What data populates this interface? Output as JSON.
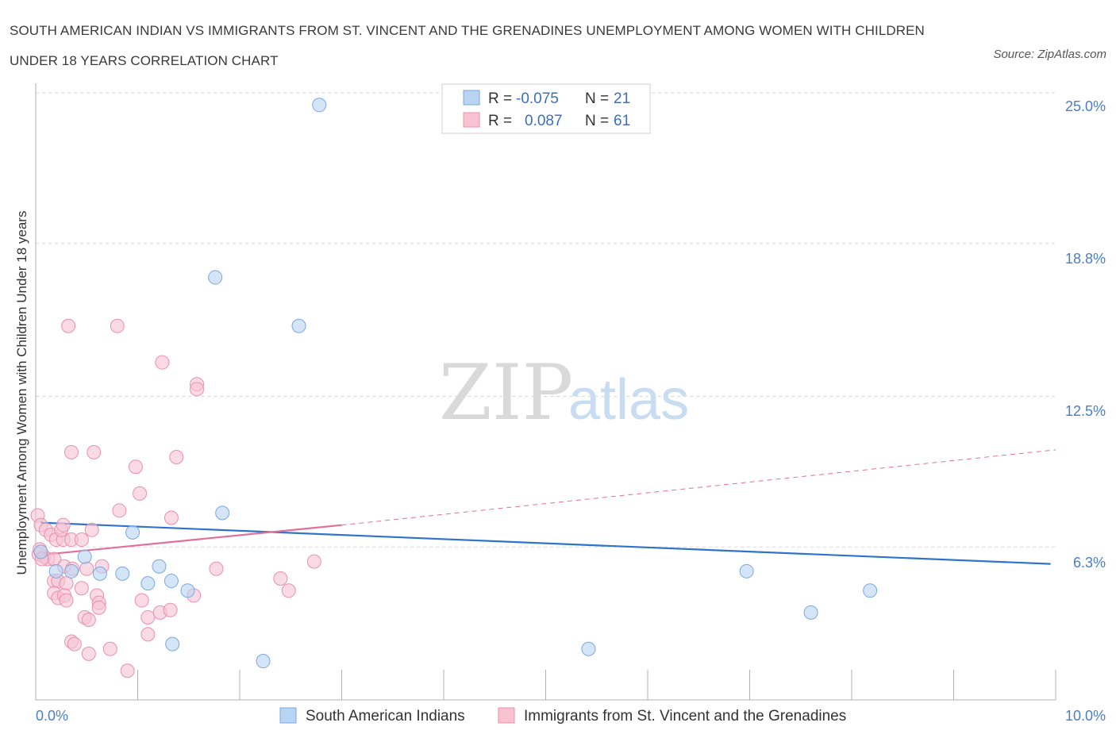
{
  "title": "SOUTH AMERICAN INDIAN VS IMMIGRANTS FROM ST. VINCENT AND THE GRENADINES UNEMPLOYMENT AMONG WOMEN WITH CHILDREN UNDER 18 YEARS CORRELATION CHART",
  "source": "Source: ZipAtlas.com",
  "watermark": {
    "zip": "ZIP",
    "atlas": "atlas"
  },
  "colors": {
    "blue_fill": "#b9d3f3",
    "blue_stroke": "#7aa7e0",
    "blue_line": "#2f74c8",
    "pink_fill": "#f7c3d3",
    "pink_stroke": "#e98fae",
    "pink_line": "#e0709a",
    "grid": "#d8d8d8",
    "axis_label": "#4a7fc8"
  },
  "legend_top": {
    "rows": [
      {
        "r_label": "R =",
        "r_value": "-0.075",
        "n_label": "N =",
        "n_value": "21",
        "series": "blue"
      },
      {
        "r_label": "R =",
        "r_value": "0.087",
        "n_label": "N =",
        "n_value": "61",
        "series": "pink"
      }
    ]
  },
  "chart_data": {
    "type": "scatter",
    "title": "SOUTH AMERICAN INDIAN VS IMMIGRANTS FROM ST. VINCENT AND THE GRENADINES UNEMPLOYMENT AMONG WOMEN WITH CHILDREN UNDER 18 YEARS CORRELATION CHART",
    "xlabel": "",
    "ylabel": "Unemployment Among Women with Children Under 18 years",
    "xlim": [
      0,
      10
    ],
    "ylim": [
      0,
      25.0
    ],
    "x_tick_labels": [
      "0.0%",
      "10.0%"
    ],
    "y_ticks": [
      6.3,
      12.5,
      18.8,
      25.0
    ],
    "y_tick_labels": [
      "6.3%",
      "12.5%",
      "18.8%",
      "25.0%"
    ],
    "grid": true,
    "legend": [
      "South American Indians",
      "Immigrants from St. Vincent and the Grenadines"
    ],
    "series": [
      {
        "name": "South American Indians",
        "color": "blue",
        "r": -0.075,
        "n": 21,
        "trend": {
          "x": [
            0.05,
            9.95
          ],
          "y": [
            7.3,
            5.6
          ]
        },
        "points": [
          [
            2.78,
            24.5
          ],
          [
            1.76,
            17.4
          ],
          [
            2.58,
            15.4
          ],
          [
            0.05,
            6.1
          ],
          [
            0.2,
            5.3
          ],
          [
            0.35,
            5.3
          ],
          [
            0.48,
            5.9
          ],
          [
            0.63,
            5.2
          ],
          [
            0.85,
            5.2
          ],
          [
            0.95,
            6.9
          ],
          [
            1.1,
            4.8
          ],
          [
            1.21,
            5.5
          ],
          [
            1.33,
            4.9
          ],
          [
            1.49,
            4.5
          ],
          [
            1.83,
            7.7
          ],
          [
            1.34,
            2.3
          ],
          [
            2.23,
            1.6
          ],
          [
            5.42,
            2.1
          ],
          [
            6.97,
            5.3
          ],
          [
            7.6,
            3.6
          ],
          [
            8.18,
            4.5
          ]
        ]
      },
      {
        "name": "Immigrants from St. Vincent and the Grenadines",
        "color": "pink",
        "r": 0.087,
        "n": 61,
        "trend_solid": {
          "x": [
            0.0,
            3.0
          ],
          "y": [
            5.95,
            7.2
          ]
        },
        "trend_dashed": {
          "x": [
            3.0,
            10.0
          ],
          "y": [
            7.2,
            10.3
          ]
        },
        "points": [
          [
            0.32,
            15.4
          ],
          [
            0.8,
            15.4
          ],
          [
            1.24,
            13.9
          ],
          [
            1.58,
            13.0
          ],
          [
            1.58,
            12.8
          ],
          [
            0.35,
            10.2
          ],
          [
            0.57,
            10.2
          ],
          [
            1.38,
            10.0
          ],
          [
            0.98,
            9.6
          ],
          [
            1.02,
            8.5
          ],
          [
            0.82,
            7.8
          ],
          [
            1.33,
            7.5
          ],
          [
            0.02,
            7.6
          ],
          [
            0.05,
            7.2
          ],
          [
            0.1,
            7.0
          ],
          [
            0.15,
            6.8
          ],
          [
            0.2,
            6.6
          ],
          [
            0.27,
            6.6
          ],
          [
            0.25,
            7.0
          ],
          [
            0.27,
            7.2
          ],
          [
            0.35,
            6.6
          ],
          [
            0.45,
            6.6
          ],
          [
            0.55,
            7.0
          ],
          [
            0.03,
            6.0
          ],
          [
            0.08,
            5.9
          ],
          [
            0.12,
            5.8
          ],
          [
            0.18,
            5.8
          ],
          [
            0.28,
            5.5
          ],
          [
            0.36,
            5.4
          ],
          [
            0.5,
            5.4
          ],
          [
            0.65,
            5.5
          ],
          [
            0.18,
            4.9
          ],
          [
            0.22,
            4.9
          ],
          [
            0.3,
            4.8
          ],
          [
            0.45,
            4.6
          ],
          [
            0.6,
            4.3
          ],
          [
            0.62,
            4.0
          ],
          [
            0.18,
            4.4
          ],
          [
            0.22,
            4.2
          ],
          [
            0.28,
            4.3
          ],
          [
            0.3,
            4.1
          ],
          [
            0.62,
            3.8
          ],
          [
            0.48,
            3.4
          ],
          [
            0.52,
            3.3
          ],
          [
            1.04,
            4.1
          ],
          [
            1.1,
            3.4
          ],
          [
            1.22,
            3.6
          ],
          [
            1.32,
            3.7
          ],
          [
            1.55,
            4.3
          ],
          [
            1.77,
            5.4
          ],
          [
            2.4,
            5.0
          ],
          [
            2.48,
            4.5
          ],
          [
            2.73,
            5.7
          ],
          [
            0.35,
            2.4
          ],
          [
            0.38,
            2.3
          ],
          [
            0.52,
            1.9
          ],
          [
            0.73,
            2.1
          ],
          [
            0.9,
            1.2
          ],
          [
            1.1,
            2.7
          ],
          [
            0.04,
            6.2
          ],
          [
            0.06,
            5.8
          ]
        ]
      }
    ]
  }
}
